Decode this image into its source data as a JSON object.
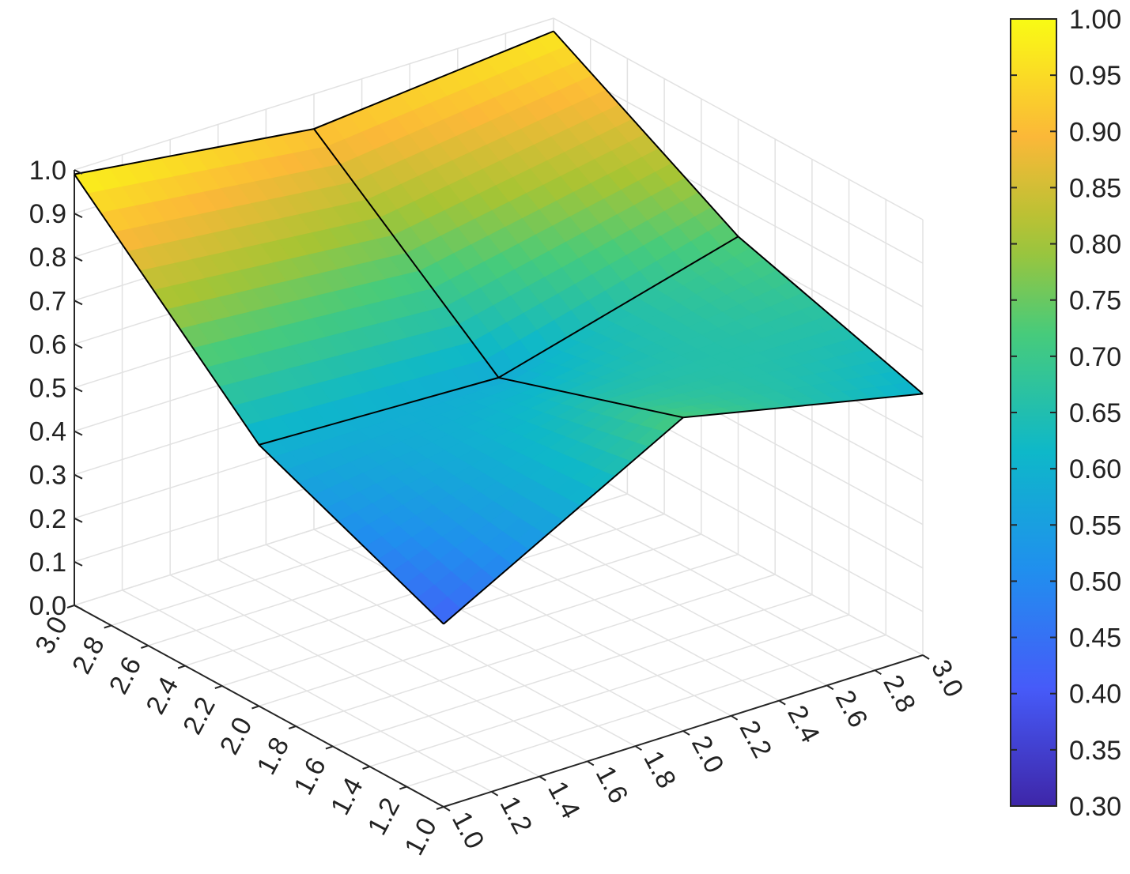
{
  "chart_data": {
    "type": "surface",
    "title": "",
    "x_axis": {
      "ticks": [
        "1.0",
        "1.2",
        "1.4",
        "1.6",
        "1.8",
        "2.0",
        "2.2",
        "2.4",
        "2.6",
        "2.8",
        "3.0"
      ],
      "range": [
        1,
        3
      ]
    },
    "y_axis": {
      "ticks": [
        "1.0",
        "1.2",
        "1.4",
        "1.6",
        "1.8",
        "2.0",
        "2.2",
        "2.4",
        "2.6",
        "2.8",
        "3.0"
      ],
      "range": [
        1,
        3
      ]
    },
    "z_axis": {
      "ticks": [
        "0.0",
        "0.1",
        "0.2",
        "0.3",
        "0.4",
        "0.5",
        "0.6",
        "0.7",
        "0.8",
        "0.9",
        "1.0"
      ],
      "range": [
        0,
        1
      ]
    },
    "x": [
      1,
      2,
      3
    ],
    "y": [
      1,
      2,
      3
    ],
    "z": [
      [
        0.42,
        0.72,
        0.6
      ],
      [
        0.6,
        0.58,
        0.73
      ],
      [
        0.99,
        0.92,
        0.97
      ]
    ],
    "z_layout_note_removed": true,
    "colorbar": {
      "ticks": [
        "0.30",
        "0.35",
        "0.40",
        "0.45",
        "0.50",
        "0.55",
        "0.60",
        "0.65",
        "0.70",
        "0.75",
        "0.80",
        "0.85",
        "0.90",
        "0.95",
        "1.00"
      ],
      "range": [
        0.3,
        1.0
      ],
      "colormap": "parula"
    },
    "grid": true,
    "edge_color": "#000000"
  }
}
